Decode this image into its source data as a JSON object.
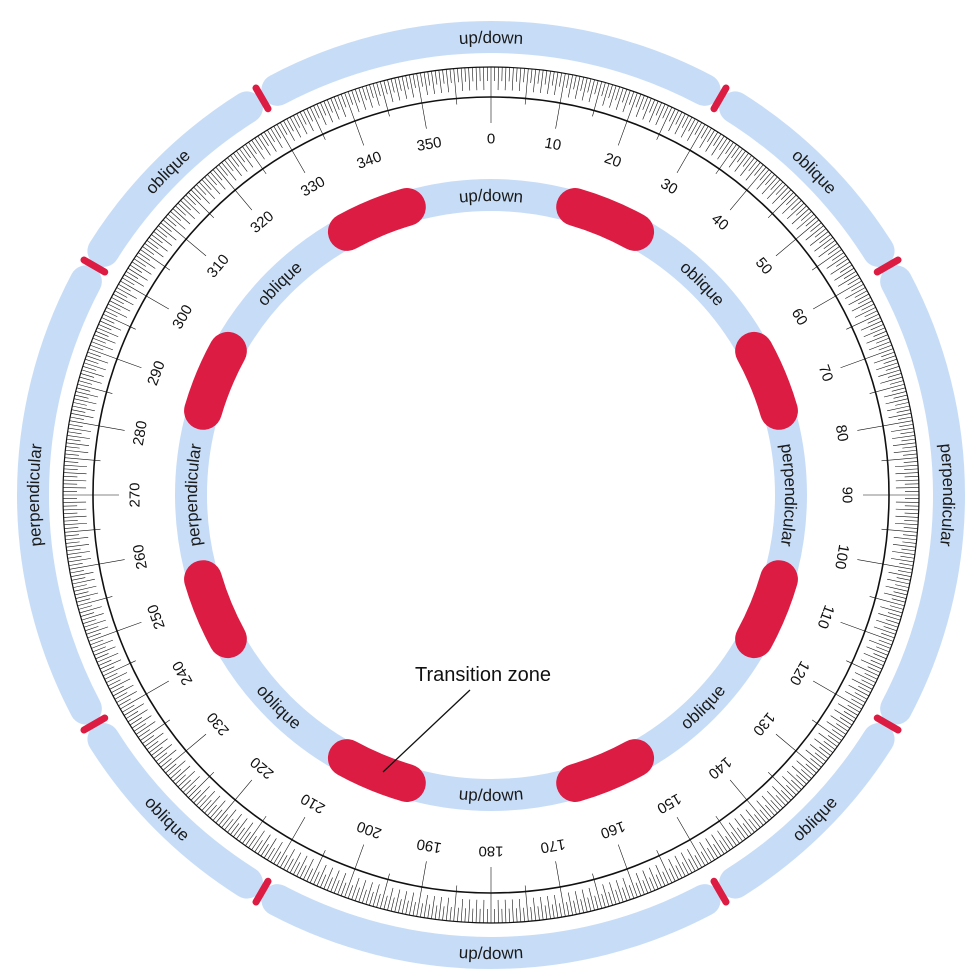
{
  "colors": {
    "zone_fill": "#c7ddf7",
    "transition_fill": "#dc1c43",
    "scale_line": "#111111",
    "background": "#ffffff"
  },
  "outer_ring": {
    "segments": [
      {
        "label": "up/down",
        "start_deg": -30,
        "end_deg": 30
      },
      {
        "label": "oblique",
        "start_deg": 30,
        "end_deg": 60
      },
      {
        "label": "perpendicular",
        "start_deg": 60,
        "end_deg": 120
      },
      {
        "label": "oblique",
        "start_deg": 120,
        "end_deg": 150
      },
      {
        "label": "up/down",
        "start_deg": 150,
        "end_deg": 210
      },
      {
        "label": "oblique",
        "start_deg": 210,
        "end_deg": 240
      },
      {
        "label": "perpendicular",
        "start_deg": 240,
        "end_deg": 300
      },
      {
        "label": "oblique",
        "start_deg": 300,
        "end_deg": 330
      }
    ],
    "transition_markers_deg": [
      30,
      60,
      120,
      150,
      210,
      240,
      300,
      330
    ]
  },
  "inner_ring": {
    "segments": [
      {
        "label": "up/down",
        "start_deg": -15,
        "end_deg": 15
      },
      {
        "label": "oblique",
        "start_deg": 30,
        "end_deg": 60
      },
      {
        "label": "perpendicular",
        "start_deg": 75,
        "end_deg": 105
      },
      {
        "label": "oblique",
        "start_deg": 120,
        "end_deg": 150
      },
      {
        "label": "up/down",
        "start_deg": 165,
        "end_deg": 195
      },
      {
        "label": "oblique",
        "start_deg": 210,
        "end_deg": 240
      },
      {
        "label": "perpendicular",
        "start_deg": 255,
        "end_deg": 285
      },
      {
        "label": "oblique",
        "start_deg": 300,
        "end_deg": 330
      }
    ],
    "transition_zones": [
      {
        "start_deg": 15,
        "end_deg": 30
      },
      {
        "start_deg": 60,
        "end_deg": 75
      },
      {
        "start_deg": 105,
        "end_deg": 120
      },
      {
        "start_deg": 150,
        "end_deg": 165
      },
      {
        "start_deg": 195,
        "end_deg": 210
      },
      {
        "start_deg": 240,
        "end_deg": 255
      },
      {
        "start_deg": 285,
        "end_deg": 300
      },
      {
        "start_deg": 330,
        "end_deg": 345
      }
    ]
  },
  "scale": {
    "degree_labels": [
      "0",
      "10",
      "20",
      "30",
      "40",
      "50",
      "60",
      "70",
      "80",
      "90",
      "100",
      "110",
      "120",
      "130",
      "140",
      "150",
      "160",
      "170",
      "180",
      "190",
      "200",
      "210",
      "220",
      "230",
      "240",
      "250",
      "260",
      "270",
      "280",
      "290",
      "300",
      "310",
      "320",
      "330",
      "340",
      "350"
    ]
  },
  "callout": {
    "label": "Transition zone",
    "target_deg": 202
  }
}
